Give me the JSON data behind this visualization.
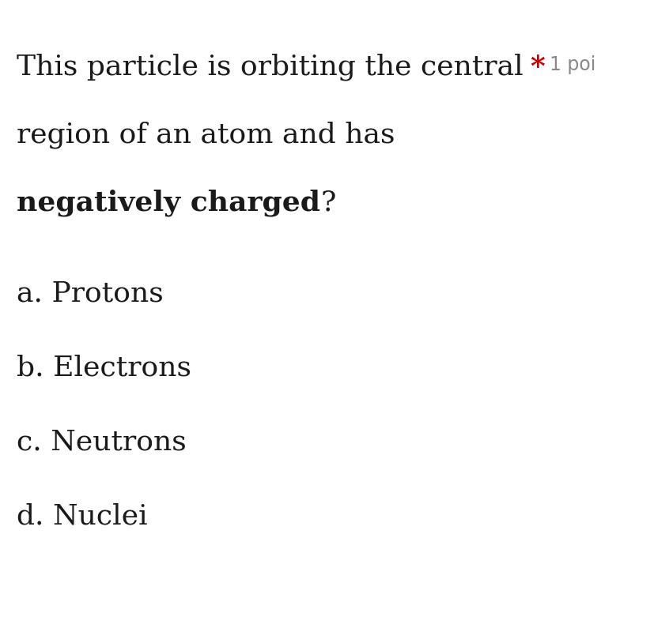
{
  "background_color": "#ffffff",
  "question_line1": "This particle is orbiting the central",
  "question_line2": "region of an atom and has",
  "question_line3_bold": "negatively charged",
  "question_line3_suffix": "?",
  "star_text": "*",
  "points_text": "1 poi",
  "options": [
    "a. Protons",
    "b. Electrons",
    "c. Neutrons",
    "d. Nuclei"
  ],
  "text_color": "#1a1a1a",
  "star_color": "#cc0000",
  "points_color": "#888888",
  "font_size_question": 26,
  "font_size_options": 26,
  "font_size_star": 26,
  "font_size_points": 17
}
